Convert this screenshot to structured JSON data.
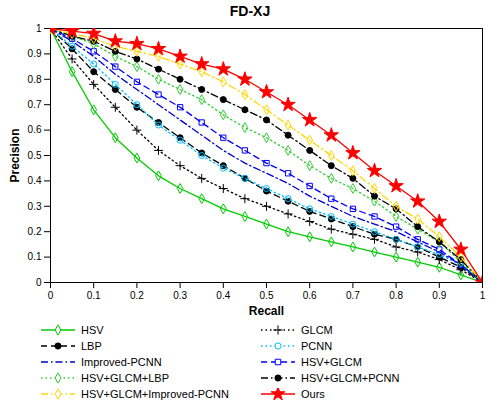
{
  "chart_data": {
    "type": "line",
    "title": "FD-XJ",
    "x_label": "Recall",
    "y_label": "Precision",
    "x": [
      0,
      0.05,
      0.1,
      0.15,
      0.2,
      0.25,
      0.3,
      0.35,
      0.4,
      0.45,
      0.5,
      0.55,
      0.6,
      0.65,
      0.7,
      0.75,
      0.8,
      0.85,
      0.9,
      0.95,
      1
    ],
    "xlim": [
      0,
      1
    ],
    "ylim": [
      0,
      1
    ],
    "xticks": [
      0,
      0.1,
      0.2,
      0.3,
      0.4,
      0.5,
      0.6,
      0.7,
      0.8,
      0.9,
      1
    ],
    "yticks": [
      0,
      0.1,
      0.2,
      0.3,
      0.4,
      0.5,
      0.6,
      0.7,
      0.8,
      0.9,
      1
    ],
    "grid": false,
    "legend": "bottom",
    "series": [
      {
        "name": "HSV",
        "color": "#00cc00",
        "marker": "diamond",
        "line_style": "solid",
        "values": [
          1,
          0.83,
          0.68,
          0.57,
          0.49,
          0.42,
          0.37,
          0.33,
          0.29,
          0.26,
          0.23,
          0.2,
          0.18,
          0.16,
          0.14,
          0.12,
          0.1,
          0.08,
          0.06,
          0.03,
          0
        ]
      },
      {
        "name": "GLCM",
        "color": "#000000",
        "marker": "plus",
        "line_style": "dotted",
        "values": [
          1,
          0.88,
          0.78,
          0.69,
          0.6,
          0.52,
          0.46,
          0.41,
          0.37,
          0.33,
          0.3,
          0.27,
          0.24,
          0.21,
          0.19,
          0.17,
          0.14,
          0.12,
          0.09,
          0.05,
          0
        ]
      },
      {
        "name": "LBP",
        "color": "#000000",
        "marker": "dot",
        "line_style": "dashed",
        "values": [
          1,
          0.92,
          0.83,
          0.76,
          0.69,
          0.63,
          0.57,
          0.51,
          0.46,
          0.41,
          0.36,
          0.32,
          0.28,
          0.25,
          0.22,
          0.19,
          0.17,
          0.14,
          0.1,
          0.06,
          0
        ]
      },
      {
        "name": "PCNN",
        "color": "#00bfff",
        "marker": "circle",
        "line_style": "dotted",
        "values": [
          1,
          0.93,
          0.86,
          0.78,
          0.7,
          0.62,
          0.56,
          0.5,
          0.45,
          0.41,
          0.37,
          0.33,
          0.29,
          0.26,
          0.23,
          0.2,
          0.17,
          0.14,
          0.11,
          0.07,
          0
        ]
      },
      {
        "name": "Improved-PCNN",
        "color": "#0000cd",
        "marker": "none",
        "line_style": "dashdot",
        "values": [
          1,
          0.95,
          0.89,
          0.82,
          0.76,
          0.7,
          0.64,
          0.58,
          0.52,
          0.47,
          0.43,
          0.39,
          0.34,
          0.3,
          0.26,
          0.23,
          0.2,
          0.16,
          0.12,
          0.07,
          0
        ]
      },
      {
        "name": "HSV+GLCM",
        "color": "#0000ff",
        "marker": "square",
        "line_style": "dashed",
        "values": [
          1,
          0.96,
          0.91,
          0.85,
          0.79,
          0.74,
          0.69,
          0.63,
          0.57,
          0.52,
          0.47,
          0.43,
          0.38,
          0.33,
          0.29,
          0.26,
          0.22,
          0.17,
          0.13,
          0.07,
          0
        ]
      },
      {
        "name": "HSV+GLCM+LBP",
        "color": "#33cc33",
        "marker": "diamond",
        "line_style": "dotted",
        "values": [
          1,
          0.97,
          0.94,
          0.89,
          0.85,
          0.8,
          0.76,
          0.72,
          0.66,
          0.61,
          0.57,
          0.52,
          0.46,
          0.41,
          0.37,
          0.32,
          0.26,
          0.21,
          0.16,
          0.08,
          0
        ]
      },
      {
        "name": "HSV+GLCM+PCNN",
        "color": "#000000",
        "marker": "dot",
        "line_style": "dashdot",
        "values": [
          1,
          0.97,
          0.95,
          0.91,
          0.88,
          0.84,
          0.8,
          0.76,
          0.72,
          0.68,
          0.64,
          0.58,
          0.52,
          0.46,
          0.41,
          0.34,
          0.29,
          0.22,
          0.16,
          0.09,
          0
        ]
      },
      {
        "name": "HSV+GLCM+Improved-PCNN",
        "color": "#ffd700",
        "marker": "diamond",
        "line_style": "dashdot",
        "values": [
          1,
          0.98,
          0.96,
          0.93,
          0.91,
          0.89,
          0.86,
          0.83,
          0.79,
          0.74,
          0.68,
          0.62,
          0.56,
          0.5,
          0.44,
          0.37,
          0.3,
          0.25,
          0.18,
          0.1,
          0
        ]
      },
      {
        "name": "Ours",
        "color": "#ff0000",
        "marker": "star",
        "line_style": "solid",
        "values": [
          1,
          0.99,
          0.98,
          0.95,
          0.94,
          0.92,
          0.89,
          0.86,
          0.84,
          0.8,
          0.75,
          0.7,
          0.64,
          0.58,
          0.51,
          0.44,
          0.38,
          0.32,
          0.24,
          0.13,
          0
        ]
      }
    ]
  }
}
